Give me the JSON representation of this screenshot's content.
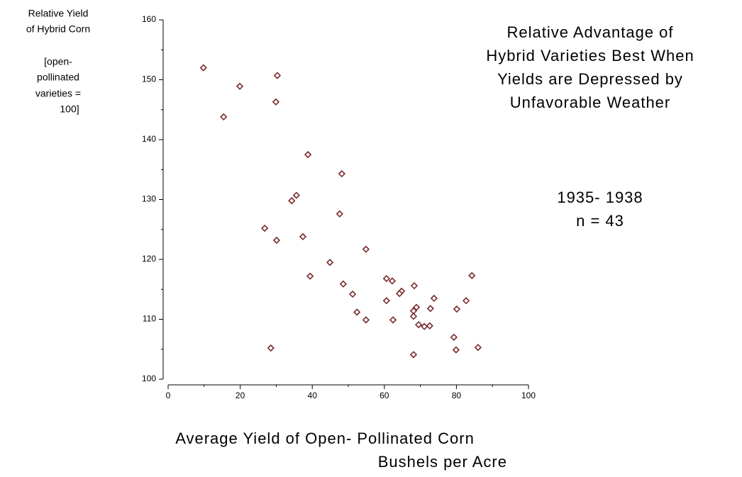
{
  "chart_data": {
    "type": "scatter",
    "title": [
      "Relative Advantage of",
      "Hybrid Varieties Best When",
      "Yields are Depressed by",
      "Unfavorable Weather"
    ],
    "annotation": [
      "1935- 1938",
      "n = 43"
    ],
    "xlabel": [
      "Average Yield of Open- Pollinated Corn",
      "Bushels per Acre"
    ],
    "ylabel": [
      "Relative Yield",
      "of Hybrid Corn",
      "[open-",
      "pollinated",
      "varieties =",
      "100]"
    ],
    "color": "#7a2a2a",
    "xlim": [
      0,
      100
    ],
    "xticks": [
      0,
      20,
      40,
      60,
      80,
      100
    ],
    "xminor": [
      10,
      30,
      50,
      70,
      90
    ],
    "ylim": [
      100,
      160
    ],
    "yticks": [
      100,
      110,
      120,
      130,
      140,
      150,
      160
    ],
    "yminor": [
      105,
      115,
      125,
      135,
      145,
      155
    ],
    "x": [
      9.8,
      15.4,
      19.9,
      30.3,
      29.9,
      38.8,
      48.2,
      35.6,
      34.3,
      47.6,
      26.8,
      37.4,
      30.1,
      54.9,
      44.9,
      39.4,
      84.3,
      60.6,
      62.2,
      48.6,
      68.3,
      64.8,
      64.2,
      51.2,
      73.8,
      82.7,
      60.6,
      68.9,
      72.8,
      80.1,
      68.1,
      52.4,
      68.1,
      62.4,
      54.9,
      69.5,
      71.1,
      72.6,
      79.3,
      28.5,
      86.0,
      79.9,
      68.1
    ],
    "values": [
      152.0,
      143.8,
      148.9,
      150.7,
      146.3,
      137.5,
      134.3,
      130.7,
      129.8,
      127.6,
      125.2,
      123.8,
      123.2,
      121.7,
      119.5,
      117.2,
      117.3,
      116.8,
      116.4,
      115.9,
      115.6,
      114.7,
      114.3,
      114.2,
      113.5,
      113.1,
      113.1,
      112.0,
      111.8,
      111.7,
      111.4,
      111.2,
      110.5,
      109.9,
      109.9,
      109.1,
      108.8,
      108.9,
      107.0,
      105.2,
      105.3,
      104.9,
      104.1
    ]
  }
}
